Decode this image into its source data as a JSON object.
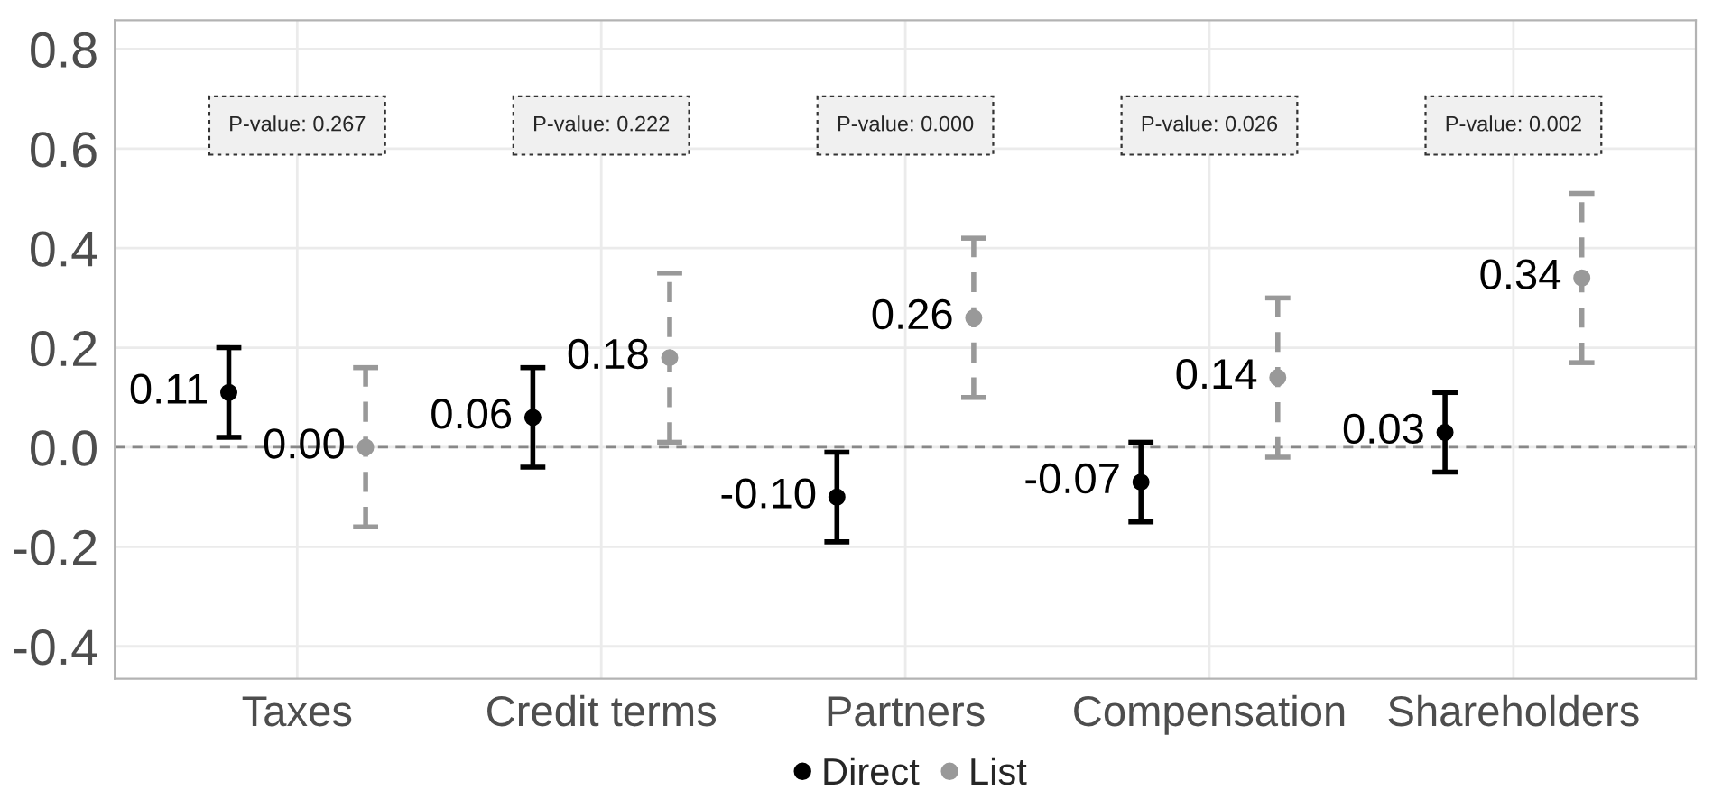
{
  "chart_data": {
    "type": "scatter",
    "categories": [
      "Taxes",
      "Credit terms",
      "Partners",
      "Compensation",
      "Shareholders"
    ],
    "series": [
      {
        "name": "Direct",
        "color": "#000000",
        "values": [
          0.11,
          0.06,
          -0.1,
          -0.07,
          0.03
        ],
        "errors": [
          0.09,
          0.1,
          0.09,
          0.08,
          0.08
        ],
        "value_labels": [
          "0.11",
          "0.06",
          "-0.10",
          "-0.07",
          "0.03"
        ],
        "line_style": "solid"
      },
      {
        "name": "List",
        "color": "#999999",
        "values": [
          0.0,
          0.18,
          0.26,
          0.14,
          0.34
        ],
        "errors": [
          0.16,
          0.17,
          0.16,
          0.16,
          0.17
        ],
        "value_labels": [
          "0.00",
          "0.18",
          "0.26",
          "0.14",
          "0.34"
        ],
        "line_style": "dashed"
      }
    ],
    "ylim": [
      -0.465,
      0.858
    ],
    "yticks": [
      {
        "value": -0.4,
        "label": "-0.4"
      },
      {
        "value": -0.2,
        "label": "-0.2"
      },
      {
        "value": 0.0,
        "label": "0.0"
      },
      {
        "value": 0.2,
        "label": "0.2"
      },
      {
        "value": 0.4,
        "label": "0.4"
      },
      {
        "value": 0.6,
        "label": "0.6"
      },
      {
        "value": 0.8,
        "label": "0.8"
      }
    ],
    "ref_lines": [
      {
        "axis": "y",
        "value": 0,
        "color": "#888888",
        "line_style": "dashed"
      }
    ],
    "annotations": [
      "P-value: 0.267",
      "P-value: 0.222",
      "P-value: 0.000",
      "P-value: 0.026",
      "P-value: 0.002"
    ],
    "marker": "circle",
    "grid": true,
    "legend": "bottom"
  }
}
